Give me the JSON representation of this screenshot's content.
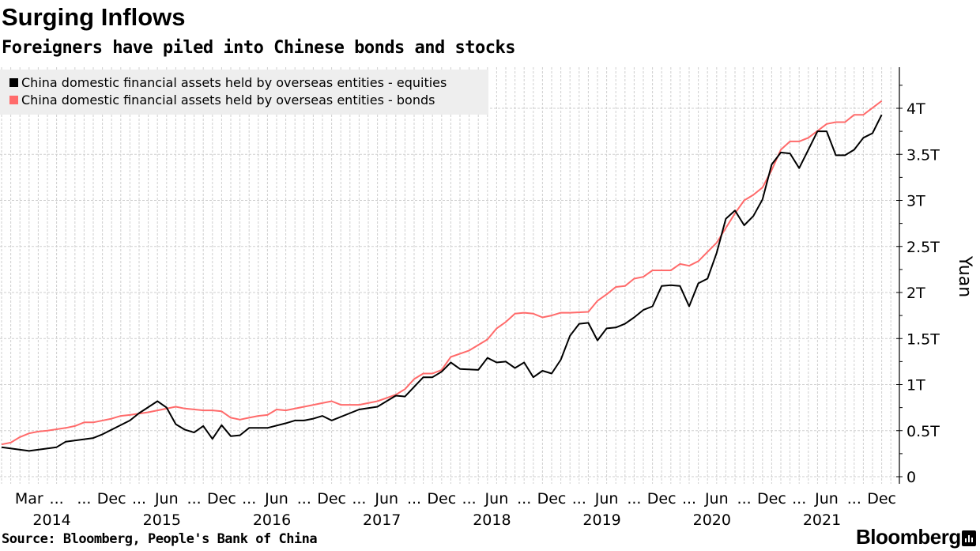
{
  "chart_data": {
    "type": "line",
    "title": "Surging Inflows",
    "subtitle": "Foreigners have piled into Chinese bonds and stocks",
    "ylabel": "Yuan",
    "xlabel": "",
    "ylim": [
      0,
      4.4
    ],
    "y_ticks": [
      {
        "value": 0,
        "label": "0"
      },
      {
        "value": 0.5,
        "label": "0.5T"
      },
      {
        "value": 1,
        "label": "1T"
      },
      {
        "value": 1.5,
        "label": "1.5T"
      },
      {
        "value": 2,
        "label": "2T"
      },
      {
        "value": 2.5,
        "label": "2.5T"
      },
      {
        "value": 3,
        "label": "3T"
      },
      {
        "value": 3.5,
        "label": "3.5T"
      },
      {
        "value": 4,
        "label": "4T"
      }
    ],
    "x_ticks": [
      {
        "date": "2014-03",
        "label": "Mar"
      },
      {
        "date": "2014-06",
        "label": "..."
      },
      {
        "date": "2014-09",
        "label": "..."
      },
      {
        "date": "2014-12",
        "label": "Dec"
      },
      {
        "date": "2015-03",
        "label": "..."
      },
      {
        "date": "2015-06",
        "label": "Jun"
      },
      {
        "date": "2015-09",
        "label": "..."
      },
      {
        "date": "2015-12",
        "label": "Dec"
      },
      {
        "date": "2016-03",
        "label": "..."
      },
      {
        "date": "2016-06",
        "label": "Jun"
      },
      {
        "date": "2016-09",
        "label": "..."
      },
      {
        "date": "2016-12",
        "label": "Dec"
      },
      {
        "date": "2017-03",
        "label": "..."
      },
      {
        "date": "2017-06",
        "label": "Jun"
      },
      {
        "date": "2017-09",
        "label": "..."
      },
      {
        "date": "2017-12",
        "label": "Dec"
      },
      {
        "date": "2018-03",
        "label": "..."
      },
      {
        "date": "2018-06",
        "label": "Jun"
      },
      {
        "date": "2018-09",
        "label": "..."
      },
      {
        "date": "2018-12",
        "label": "Dec"
      },
      {
        "date": "2019-03",
        "label": "..."
      },
      {
        "date": "2019-06",
        "label": "Jun"
      },
      {
        "date": "2019-09",
        "label": "..."
      },
      {
        "date": "2019-12",
        "label": "Dec"
      },
      {
        "date": "2020-03",
        "label": "..."
      },
      {
        "date": "2020-06",
        "label": "Jun"
      },
      {
        "date": "2020-09",
        "label": "..."
      },
      {
        "date": "2020-12",
        "label": "Dec"
      },
      {
        "date": "2021-03",
        "label": "..."
      },
      {
        "date": "2021-06",
        "label": "Jun"
      },
      {
        "date": "2021-09",
        "label": "..."
      },
      {
        "date": "2021-12",
        "label": "Dec"
      }
    ],
    "year_labels": [
      {
        "date": "2014-06",
        "label": "2014"
      },
      {
        "date": "2015-06",
        "label": "2015"
      },
      {
        "date": "2016-06",
        "label": "2016"
      },
      {
        "date": "2017-06",
        "label": "2017"
      },
      {
        "date": "2018-06",
        "label": "2018"
      },
      {
        "date": "2019-06",
        "label": "2019"
      },
      {
        "date": "2020-06",
        "label": "2020"
      },
      {
        "date": "2021-06",
        "label": "2021"
      }
    ],
    "grid": true,
    "legend_position": "top-left",
    "series": [
      {
        "name": "China domestic financial assets held by overseas entities - equities",
        "color": "#000000",
        "points": [
          [
            "2013-12",
            0.32
          ],
          [
            "2014-03",
            0.28
          ],
          [
            "2014-06",
            0.32
          ],
          [
            "2014-07",
            0.38
          ],
          [
            "2014-10",
            0.42
          ],
          [
            "2014-11",
            0.46
          ],
          [
            "2015-02",
            0.61
          ],
          [
            "2015-03",
            0.69
          ],
          [
            "2015-05",
            0.82
          ],
          [
            "2015-06",
            0.75
          ],
          [
            "2015-07",
            0.57
          ],
          [
            "2015-08",
            0.51
          ],
          [
            "2015-09",
            0.48
          ],
          [
            "2015-10",
            0.55
          ],
          [
            "2015-11",
            0.41
          ],
          [
            "2015-12",
            0.56
          ],
          [
            "2016-01",
            0.44
          ],
          [
            "2016-02",
            0.45
          ],
          [
            "2016-03",
            0.53
          ],
          [
            "2016-05",
            0.53
          ],
          [
            "2016-07",
            0.58
          ],
          [
            "2016-08",
            0.61
          ],
          [
            "2016-09",
            0.61
          ],
          [
            "2016-10",
            0.63
          ],
          [
            "2016-11",
            0.66
          ],
          [
            "2016-12",
            0.61
          ],
          [
            "2017-03",
            0.73
          ],
          [
            "2017-05",
            0.76
          ],
          [
            "2017-07",
            0.88
          ],
          [
            "2017-08",
            0.87
          ],
          [
            "2017-10",
            1.08
          ],
          [
            "2017-11",
            1.08
          ],
          [
            "2017-12",
            1.14
          ],
          [
            "2018-01",
            1.24
          ],
          [
            "2018-02",
            1.17
          ],
          [
            "2018-04",
            1.16
          ],
          [
            "2018-05",
            1.29
          ],
          [
            "2018-06",
            1.24
          ],
          [
            "2018-07",
            1.25
          ],
          [
            "2018-08",
            1.18
          ],
          [
            "2018-09",
            1.24
          ],
          [
            "2018-10",
            1.08
          ],
          [
            "2018-11",
            1.15
          ],
          [
            "2018-12",
            1.12
          ],
          [
            "2019-01",
            1.27
          ],
          [
            "2019-02",
            1.53
          ],
          [
            "2019-03",
            1.66
          ],
          [
            "2019-04",
            1.67
          ],
          [
            "2019-05",
            1.48
          ],
          [
            "2019-06",
            1.61
          ],
          [
            "2019-07",
            1.62
          ],
          [
            "2019-08",
            1.66
          ],
          [
            "2019-09",
            1.73
          ],
          [
            "2019-10",
            1.81
          ],
          [
            "2019-11",
            1.85
          ],
          [
            "2019-12",
            2.07
          ],
          [
            "2020-01",
            2.08
          ],
          [
            "2020-02",
            2.07
          ],
          [
            "2020-03",
            1.85
          ],
          [
            "2020-04",
            2.1
          ],
          [
            "2020-05",
            2.15
          ],
          [
            "2020-06",
            2.43
          ],
          [
            "2020-07",
            2.8
          ],
          [
            "2020-08",
            2.89
          ],
          [
            "2020-09",
            2.73
          ],
          [
            "2020-10",
            2.83
          ],
          [
            "2020-11",
            3.01
          ],
          [
            "2020-12",
            3.39
          ],
          [
            "2021-01",
            3.52
          ],
          [
            "2021-02",
            3.51
          ],
          [
            "2021-03",
            3.35
          ],
          [
            "2021-04",
            3.55
          ],
          [
            "2021-05",
            3.75
          ],
          [
            "2021-06",
            3.75
          ],
          [
            "2021-07",
            3.49
          ],
          [
            "2021-08",
            3.49
          ],
          [
            "2021-09",
            3.55
          ],
          [
            "2021-10",
            3.68
          ],
          [
            "2021-11",
            3.73
          ],
          [
            "2021-12",
            3.93
          ]
        ]
      },
      {
        "name": "China domestic financial assets held by overseas entities - bonds",
        "color": "#ff6b6b",
        "points": [
          [
            "2013-12",
            0.35
          ],
          [
            "2014-01",
            0.37
          ],
          [
            "2014-02",
            0.43
          ],
          [
            "2014-03",
            0.47
          ],
          [
            "2014-04",
            0.49
          ],
          [
            "2014-05",
            0.5
          ],
          [
            "2014-07",
            0.53
          ],
          [
            "2014-08",
            0.55
          ],
          [
            "2014-09",
            0.59
          ],
          [
            "2014-10",
            0.59
          ],
          [
            "2014-12",
            0.63
          ],
          [
            "2015-01",
            0.66
          ],
          [
            "2015-02",
            0.67
          ],
          [
            "2015-04",
            0.7
          ],
          [
            "2015-07",
            0.76
          ],
          [
            "2015-08",
            0.74
          ],
          [
            "2015-10",
            0.72
          ],
          [
            "2015-11",
            0.72
          ],
          [
            "2015-12",
            0.71
          ],
          [
            "2016-01",
            0.64
          ],
          [
            "2016-02",
            0.62
          ],
          [
            "2016-03",
            0.64
          ],
          [
            "2016-04",
            0.66
          ],
          [
            "2016-05",
            0.67
          ],
          [
            "2016-06",
            0.73
          ],
          [
            "2016-07",
            0.72
          ],
          [
            "2016-09",
            0.76
          ],
          [
            "2016-12",
            0.82
          ],
          [
            "2017-01",
            0.78
          ],
          [
            "2017-03",
            0.78
          ],
          [
            "2017-05",
            0.82
          ],
          [
            "2017-07",
            0.89
          ],
          [
            "2017-08",
            0.95
          ],
          [
            "2017-09",
            1.06
          ],
          [
            "2017-10",
            1.12
          ],
          [
            "2017-11",
            1.12
          ],
          [
            "2017-12",
            1.16
          ],
          [
            "2018-01",
            1.3
          ],
          [
            "2018-03",
            1.37
          ],
          [
            "2018-05",
            1.49
          ],
          [
            "2018-06",
            1.61
          ],
          [
            "2018-07",
            1.68
          ],
          [
            "2018-08",
            1.77
          ],
          [
            "2018-09",
            1.78
          ],
          [
            "2018-10",
            1.77
          ],
          [
            "2018-11",
            1.73
          ],
          [
            "2018-12",
            1.75
          ],
          [
            "2019-01",
            1.78
          ],
          [
            "2019-02",
            1.78
          ],
          [
            "2019-04",
            1.79
          ],
          [
            "2019-05",
            1.91
          ],
          [
            "2019-06",
            1.98
          ],
          [
            "2019-07",
            2.06
          ],
          [
            "2019-08",
            2.07
          ],
          [
            "2019-09",
            2.15
          ],
          [
            "2019-10",
            2.17
          ],
          [
            "2019-11",
            2.24
          ],
          [
            "2020-01",
            2.24
          ],
          [
            "2020-02",
            2.31
          ],
          [
            "2020-03",
            2.29
          ],
          [
            "2020-04",
            2.34
          ],
          [
            "2020-05",
            2.44
          ],
          [
            "2020-06",
            2.54
          ],
          [
            "2020-07",
            2.7
          ],
          [
            "2020-08",
            2.86
          ],
          [
            "2020-09",
            3.0
          ],
          [
            "2020-10",
            3.06
          ],
          [
            "2020-11",
            3.14
          ],
          [
            "2020-12",
            3.33
          ],
          [
            "2021-01",
            3.55
          ],
          [
            "2021-02",
            3.64
          ],
          [
            "2021-03",
            3.64
          ],
          [
            "2021-04",
            3.68
          ],
          [
            "2021-06",
            3.83
          ],
          [
            "2021-07",
            3.85
          ],
          [
            "2021-08",
            3.85
          ],
          [
            "2021-09",
            3.93
          ],
          [
            "2021-10",
            3.93
          ],
          [
            "2021-12",
            4.08
          ]
        ]
      }
    ]
  },
  "source": "Source: Bloomberg, People's Bank of China",
  "brand": "Bloomberg"
}
